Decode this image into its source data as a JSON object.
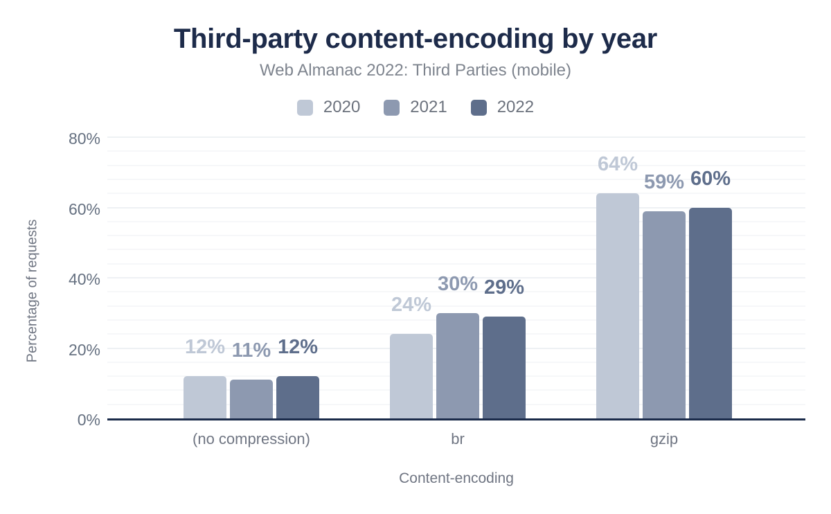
{
  "chart_data": {
    "type": "bar",
    "title": "Third-party content-encoding by year",
    "subtitle": "Web Almanac 2022: Third Parties (mobile)",
    "xlabel": "Content-encoding",
    "ylabel": "Percentage of requests",
    "categories": [
      "(no compression)",
      "br",
      "gzip"
    ],
    "series": [
      {
        "name": "2020",
        "color": "#bfc8d6",
        "values": [
          12,
          24,
          64
        ],
        "labels": [
          "12%",
          "24%",
          "64%"
        ]
      },
      {
        "name": "2021",
        "color": "#8d99b0",
        "values": [
          11,
          30,
          59
        ],
        "labels": [
          "11%",
          "30%",
          "59%"
        ]
      },
      {
        "name": "2022",
        "color": "#5e6e8b",
        "values": [
          12,
          29,
          60
        ],
        "labels": [
          "12%",
          "29%",
          "60%"
        ]
      }
    ],
    "ylim": [
      0,
      80
    ],
    "yticks": [
      {
        "value": 0,
        "label": "0%"
      },
      {
        "value": 20,
        "label": "20%"
      },
      {
        "value": 40,
        "label": "40%"
      },
      {
        "value": 60,
        "label": "60%"
      },
      {
        "value": 80,
        "label": "80%"
      }
    ],
    "grid": {
      "orientation": "horizontal",
      "minor_step": 4,
      "major_step": 20
    },
    "legend_position": "top"
  },
  "colors": {
    "background": "#ffffff",
    "title": "#1d2b4a",
    "subtitle": "#7e848e",
    "legend_text": "#6c727d",
    "tick_text": "#657080",
    "axis_title_text": "#6f7582",
    "axis_line": "#1b2b4a"
  }
}
